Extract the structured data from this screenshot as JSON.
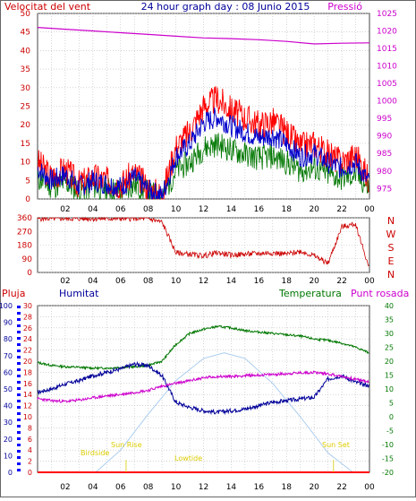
{
  "header": {
    "left": "Velocitat del vent",
    "center": "24 hour graph day : 08 Junio 2015",
    "right": "Pressió"
  },
  "colors": {
    "wind_gust": "#ff0000",
    "wind_avg": "#0000cc",
    "wind_dir": "#cc0000",
    "pressure": "#cc00cc",
    "temperature": "#007700",
    "humidity": "#000099",
    "dew_point": "#cc00cc",
    "solar": "#aaccee",
    "rain": "#ff0000",
    "astro_label": "#ddcc00"
  },
  "panel3_labels": {
    "rain": "Pluja",
    "humidity": "Humitat",
    "temperature": "Temperatura",
    "dew_point": "Punt rosada"
  },
  "astro_labels": {
    "birdside": "Birdside",
    "sunrise": "Sun Rise",
    "lowtide": "Lowtide",
    "sunset": "Sun Set"
  },
  "compass": [
    "N",
    "W",
    "S",
    "E",
    "N"
  ],
  "chart_data": [
    {
      "type": "line",
      "title": "24 hour graph day : 08 Junio 2015",
      "x_ticks": [
        "02",
        "04",
        "06",
        "08",
        "10",
        "12",
        "14",
        "16",
        "18",
        "20",
        "22",
        "00"
      ],
      "left_axis": {
        "ticks": [
          0,
          5,
          10,
          15,
          20,
          25,
          30,
          35,
          40,
          45,
          50
        ],
        "ylim": [
          0,
          50
        ]
      },
      "right_axis": {
        "ticks": [
          975,
          980,
          985,
          990,
          995,
          1000,
          1005,
          1010,
          1015,
          1020,
          1025
        ],
        "ylim": [
          972,
          1025
        ]
      },
      "series": [
        {
          "name": "Velocitat del vent",
          "axis": "left",
          "x": [
            0,
            1,
            2,
            3,
            4,
            5,
            6,
            7,
            8,
            9,
            10,
            11,
            12,
            13,
            14,
            15,
            16,
            17,
            18,
            19,
            20,
            21,
            22,
            23,
            24
          ],
          "values": [
            10,
            6,
            8,
            4,
            6,
            5,
            4,
            7,
            3,
            1,
            14,
            18,
            25,
            27,
            24,
            22,
            20,
            21,
            18,
            14,
            15,
            12,
            10,
            12,
            5
          ]
        },
        {
          "name": "Pressió",
          "axis": "right",
          "x": [
            0,
            2,
            4,
            6,
            8,
            10,
            12,
            14,
            16,
            18,
            20,
            22,
            24
          ],
          "values": [
            1021,
            1020.5,
            1020,
            1019.5,
            1019,
            1018.5,
            1018,
            1017.8,
            1017.5,
            1017,
            1016.3,
            1016.5,
            1016.6
          ]
        }
      ]
    },
    {
      "type": "line",
      "x_ticks": [
        "02",
        "04",
        "06",
        "08",
        "10",
        "12",
        "14",
        "16",
        "18",
        "20",
        "22",
        "00"
      ],
      "y_ticks": [
        0,
        90,
        180,
        270,
        360
      ],
      "ylim": [
        0,
        360
      ],
      "series": [
        {
          "name": "wind direction",
          "x": [
            0,
            1,
            2,
            3,
            4,
            5,
            6,
            7,
            8,
            9,
            10,
            11,
            12,
            13,
            14,
            15,
            16,
            17,
            18,
            19,
            20,
            21,
            22,
            23,
            24
          ],
          "values": [
            355,
            355,
            355,
            355,
            355,
            355,
            355,
            355,
            355,
            330,
            130,
            120,
            110,
            130,
            115,
            120,
            125,
            130,
            120,
            140,
            110,
            60,
            300,
            320,
            20
          ]
        }
      ]
    },
    {
      "type": "line",
      "x_ticks": [
        "02",
        "04",
        "06",
        "08",
        "10",
        "12",
        "14",
        "16",
        "18",
        "20",
        "22",
        "00"
      ],
      "axes": {
        "humidity": {
          "ticks": [
            0,
            10,
            20,
            30,
            40,
            50,
            60,
            70,
            80,
            90,
            100
          ],
          "ylim": [
            0,
            100
          ]
        },
        "rain": {
          "ticks": [
            0,
            2,
            4,
            6,
            8,
            10,
            12,
            14,
            16,
            18,
            20,
            22,
            24,
            26,
            28,
            30
          ],
          "ylim": [
            0,
            30
          ]
        },
        "temperature": {
          "ticks": [
            -20,
            -15,
            -10,
            -5,
            0,
            5,
            10,
            15,
            20,
            25,
            30,
            35,
            40
          ],
          "ylim": [
            -20,
            40
          ]
        }
      },
      "series": [
        {
          "name": "Temperatura",
          "axis": "temperature",
          "x": [
            0,
            1,
            2,
            3,
            4,
            5,
            6,
            7,
            8,
            9,
            10,
            11,
            12,
            13,
            14,
            15,
            16,
            17,
            18,
            19,
            20,
            21,
            22,
            23,
            24
          ],
          "values": [
            19.5,
            18.5,
            18,
            17.8,
            17.5,
            17.5,
            17.8,
            18,
            18.5,
            20,
            26,
            30,
            31.5,
            32.5,
            32,
            31,
            30.5,
            30,
            29.5,
            29,
            28,
            27.5,
            26.5,
            25,
            23
          ]
        },
        {
          "name": "Humitat",
          "axis": "humidity",
          "x": [
            0,
            1,
            2,
            3,
            4,
            5,
            6,
            7,
            8,
            9,
            10,
            11,
            12,
            13,
            14,
            15,
            16,
            17,
            18,
            19,
            20,
            21,
            22,
            23,
            24
          ],
          "values": [
            48,
            50,
            53,
            55,
            58,
            60,
            62,
            65,
            64,
            58,
            42,
            39,
            37,
            36,
            37,
            38,
            40,
            42,
            43,
            44,
            45,
            56,
            58,
            54,
            52
          ]
        },
        {
          "name": "Punt rosada",
          "axis": "temperature",
          "x": [
            0,
            1,
            2,
            3,
            4,
            5,
            6,
            7,
            8,
            9,
            10,
            11,
            12,
            13,
            14,
            15,
            16,
            17,
            18,
            19,
            20,
            21,
            22,
            23,
            24
          ],
          "values": [
            6.5,
            5.8,
            5.5,
            6,
            6.8,
            7.5,
            8,
            8.8,
            9.5,
            11,
            12,
            13,
            14,
            14.5,
            14.5,
            14.8,
            15,
            15.2,
            15.5,
            15.8,
            16,
            15.5,
            14.5,
            13.5,
            12.5
          ]
        },
        {
          "name": "solar",
          "axis": "rain",
          "x": [
            4.2,
            6,
            8,
            10,
            12,
            13.5,
            15,
            17,
            19,
            21,
            22.8
          ],
          "values": [
            0,
            4,
            10.5,
            16.5,
            20.5,
            21.5,
            20.5,
            16,
            10,
            3.5,
            0
          ]
        },
        {
          "name": "Pluja",
          "axis": "rain",
          "x": [
            0,
            24
          ],
          "values": [
            0,
            0
          ]
        }
      ]
    }
  ]
}
